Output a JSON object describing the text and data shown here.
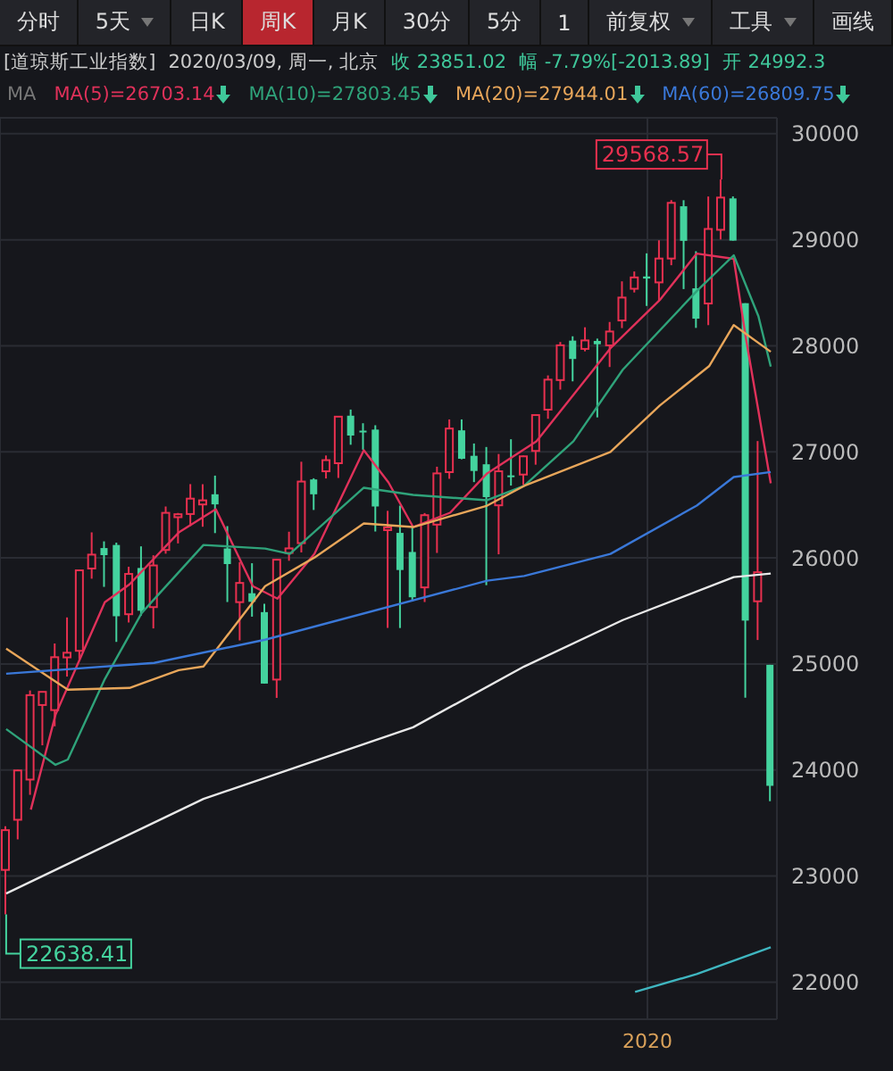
{
  "chart_data": {
    "type": "candlestick",
    "title": "[道琼斯工业指数]",
    "subtitle": "2020/03/09, 周一, 北京",
    "legend_title": "MA",
    "annotations": [
      "分时",
      "5天",
      "日K",
      "周K",
      "月K",
      "30分",
      "5分",
      "1",
      "前复权",
      "工具",
      "画线",
      "收 23851.02",
      "幅 -7.79%[-2013.89]",
      "开 24992.3",
      "29568.57",
      "22638.41"
    ],
    "categories": [
      null,
      null,
      null,
      null,
      null,
      null,
      null,
      null,
      null,
      null,
      null,
      null,
      null,
      null,
      null,
      null,
      null,
      null,
      null,
      null,
      null,
      null,
      null,
      null,
      null,
      null,
      null,
      null,
      null,
      null,
      null,
      null,
      null,
      null,
      null,
      null,
      null,
      null,
      null,
      null,
      null,
      null,
      null,
      null,
      null,
      null,
      null,
      null,
      null,
      null,
      null,
      null,
      "2020",
      null,
      null,
      null,
      null,
      null,
      null,
      null,
      null,
      null,
      null
    ],
    "ohlc": [
      [
        23058,
        23470,
        22638.41,
        23433
      ],
      [
        23531,
        24002,
        23346,
        23996
      ],
      [
        23910,
        24750,
        23766,
        24706
      ],
      [
        24613,
        24737,
        24233,
        24737
      ],
      [
        24565,
        25193,
        24412,
        25064
      ],
      [
        25062,
        25439,
        24881,
        25106
      ],
      [
        25124,
        25883,
        25044,
        25883
      ],
      [
        25900,
        26241,
        25804,
        26031
      ],
      [
        26093,
        26156,
        25727,
        26026
      ],
      [
        26122,
        26144,
        25208,
        25450
      ],
      [
        25469,
        25917,
        25391,
        25849
      ],
      [
        25905,
        26109,
        25455,
        25502
      ],
      [
        25536,
        26025,
        25335,
        25929
      ],
      [
        26075,
        26485,
        26040,
        26425
      ],
      [
        26384,
        26424,
        26137,
        26412
      ],
      [
        26414,
        26696,
        26300,
        26559
      ],
      [
        26504,
        26695,
        26294,
        26543
      ],
      [
        26600,
        26776,
        26234,
        26505
      ],
      [
        26089,
        26300,
        25584,
        25942
      ],
      [
        25583,
        25960,
        25222,
        25764
      ],
      [
        25667,
        25950,
        25446,
        25586
      ],
      [
        25489,
        25568,
        24815,
        24815
      ],
      [
        24853,
        25986,
        24680,
        25983
      ],
      [
        26047,
        26247,
        25973,
        26090
      ],
      [
        26139,
        26907,
        26052,
        26720
      ],
      [
        26740,
        26751,
        26452,
        26600
      ],
      [
        26817,
        26966,
        26749,
        26922
      ],
      [
        26893,
        27333,
        26754,
        27332
      ],
      [
        27341,
        27399,
        27067,
        27154
      ],
      [
        27200,
        27270,
        27020,
        27192
      ],
      [
        27210,
        27251,
        26249,
        26485
      ],
      [
        26262,
        26444,
        25340,
        26287
      ],
      [
        26236,
        26493,
        25339,
        25886
      ],
      [
        26056,
        26298,
        25589,
        25629
      ],
      [
        25722,
        26423,
        25584,
        26403
      ],
      [
        26314,
        26860,
        26047,
        26797
      ],
      [
        26809,
        27306,
        26746,
        27220
      ],
      [
        27203,
        27306,
        26930,
        26935
      ],
      [
        26963,
        27079,
        26715,
        26820
      ],
      [
        26883,
        27046,
        25743,
        26573
      ],
      [
        26496,
        26980,
        26034,
        26817
      ],
      [
        26778,
        27119,
        26682,
        26770
      ],
      [
        26786,
        26964,
        26687,
        26958
      ],
      [
        27009,
        27347,
        26879,
        27347
      ],
      [
        27398,
        27721,
        27312,
        27681
      ],
      [
        27677,
        28036,
        27587,
        28005
      ],
      [
        28049,
        28090,
        27665,
        27876
      ],
      [
        27971,
        28175,
        27948,
        28051
      ],
      [
        28046,
        28068,
        27325,
        28015
      ],
      [
        28004,
        28225,
        27800,
        28135
      ],
      [
        28239,
        28608,
        28167,
        28455
      ],
      [
        28538,
        28701,
        28503,
        28645
      ],
      [
        28654,
        28872,
        28376,
        28634
      ],
      [
        28598,
        28995,
        28418,
        28823
      ],
      [
        28823,
        29374,
        28760,
        29348
      ],
      [
        29316,
        29373,
        28535,
        28990
      ],
      [
        28542,
        28892,
        28169,
        28256
      ],
      [
        28399,
        29408,
        28195,
        29102
      ],
      [
        29094,
        29568.57,
        29003,
        29398
      ],
      [
        29390,
        29409,
        28992,
        28992
      ],
      [
        28402,
        28402,
        24681,
        25409
      ],
      [
        25591,
        27102,
        25226,
        25865
      ],
      [
        24992,
        24992,
        23706,
        23851.02
      ]
    ],
    "colors": [
      "#e8304f",
      "#e8304f",
      "#e8304f",
      "#e8304f",
      "#e8304f",
      "#e8304f",
      "#e8304f",
      "#e8304f",
      "#44d39e",
      "#44d39e",
      "#e8304f",
      "#44d39e",
      "#e8304f",
      "#e8304f",
      "#e8304f",
      "#e8304f",
      "#e8304f",
      "#44d39e",
      "#44d39e",
      "#e8304f",
      "#44d39e",
      "#44d39e",
      "#e8304f",
      "#e8304f",
      "#e8304f",
      "#44d39e",
      "#e8304f",
      "#e8304f",
      "#44d39e",
      "#44d39e",
      "#44d39e",
      "#e8304f",
      "#44d39e",
      "#44d39e",
      "#e8304f",
      "#e8304f",
      "#e8304f",
      "#44d39e",
      "#44d39e",
      "#44d39e",
      "#e8304f",
      "#44d39e",
      "#e8304f",
      "#e8304f",
      "#e8304f",
      "#e8304f",
      "#44d39e",
      "#e8304f",
      "#44d39e",
      "#e8304f",
      "#e8304f",
      "#e8304f",
      "#44d39e",
      "#e8304f",
      "#e8304f",
      "#44d39e",
      "#44d39e",
      "#e8304f",
      "#e8304f",
      "#44d39e",
      "#44d39e",
      "#e8304f",
      "#44d39e"
    ],
    "series": [
      {
        "type": "line",
        "name": "MA(5)=26703.14",
        "color": "#e0315a",
        "values": [
          null,
          null,
          23627,
          null,
          24521,
          null,
          null,
          null,
          25583,
          null,
          25751,
          null,
          null,
          null,
          26240,
          null,
          null,
          26459,
          null,
          null,
          25734,
          null,
          25616,
          null,
          null,
          26038,
          null,
          null,
          null,
          27016,
          null,
          26712,
          null,
          26291,
          null,
          null,
          26426,
          null,
          null,
          26797,
          null,
          null,
          null,
          27100,
          null,
          null,
          null,
          null,
          null,
          27977,
          null,
          null,
          null,
          28432,
          null,
          null,
          28870,
          null,
          null,
          28820,
          28061,
          27387,
          26703.14
        ]
      },
      {
        "type": "line",
        "name": "MA(10)=27803.45",
        "color": "#2fa37a",
        "values": [
          24386,
          null,
          null,
          null,
          24049,
          24099,
          null,
          null,
          24858,
          null,
          null,
          25482,
          null,
          null,
          null,
          null,
          26122,
          null,
          null,
          null,
          null,
          26088,
          null,
          26038,
          null,
          null,
          null,
          null,
          null,
          26662,
          null,
          null,
          null,
          26594,
          null,
          null,
          null,
          null,
          null,
          26544,
          null,
          null,
          26679,
          null,
          null,
          null,
          27100,
          null,
          null,
          null,
          27775,
          null,
          null,
          null,
          null,
          null,
          28516,
          null,
          null,
          28854,
          null,
          28280,
          27803.45
        ]
      },
      {
        "type": "line",
        "name": "MA(20)=27944.01",
        "color": "#e8a65a",
        "values": [
          25144,
          null,
          null,
          null,
          null,
          24757,
          null,
          null,
          null,
          null,
          24774,
          null,
          null,
          null,
          24942,
          null,
          24976,
          null,
          null,
          null,
          null,
          25734,
          null,
          null,
          null,
          26004,
          null,
          null,
          null,
          26325,
          null,
          null,
          null,
          26291,
          null,
          null,
          null,
          null,
          null,
          26493,
          null,
          null,
          26679,
          null,
          null,
          null,
          null,
          null,
          null,
          26999,
          null,
          null,
          null,
          27437,
          null,
          null,
          null,
          27808,
          null,
          28196,
          null,
          null,
          27944.01
        ]
      },
      {
        "type": "line",
        "name": "MA(60)=26809.75",
        "color": "#3a78d8",
        "values": [
          24908,
          null,
          null,
          null,
          null,
          null,
          null,
          null,
          null,
          null,
          null,
          null,
          25010,
          null,
          null,
          null,
          null,
          null,
          null,
          null,
          null,
          25229,
          null,
          null,
          null,
          null,
          null,
          null,
          null,
          null,
          null,
          null,
          null,
          null,
          null,
          null,
          null,
          null,
          null,
          25785,
          null,
          null,
          25830,
          null,
          null,
          null,
          null,
          null,
          null,
          26038,
          null,
          null,
          null,
          null,
          null,
          null,
          26493,
          null,
          null,
          26763,
          null,
          null,
          26809.75
        ]
      },
      {
        "type": "line",
        "color": "#e8e8e8",
        "values": [
          22835,
          null,
          null,
          null,
          null,
          null,
          null,
          null,
          null,
          null,
          null,
          null,
          null,
          null,
          null,
          null,
          23728,
          null,
          null,
          null,
          null,
          null,
          null,
          null,
          null,
          null,
          null,
          null,
          null,
          null,
          null,
          null,
          null,
          24403,
          null,
          null,
          null,
          null,
          null,
          null,
          null,
          null,
          24976,
          null,
          null,
          null,
          null,
          null,
          null,
          null,
          25414,
          null,
          null,
          null,
          null,
          null,
          null,
          null,
          null,
          25819,
          null,
          null,
          25853
        ]
      },
      {
        "type": "line",
        "color": "#3fb6c0",
        "values": [
          null,
          null,
          null,
          null,
          null,
          null,
          null,
          null,
          null,
          null,
          null,
          null,
          null,
          null,
          null,
          null,
          null,
          null,
          null,
          null,
          null,
          null,
          null,
          null,
          null,
          null,
          null,
          null,
          null,
          null,
          null,
          null,
          null,
          null,
          null,
          null,
          null,
          null,
          null,
          null,
          null,
          null,
          null,
          null,
          null,
          null,
          null,
          null,
          null,
          null,
          null,
          21907,
          null,
          null,
          null,
          null,
          22076,
          null,
          null,
          null,
          null,
          null,
          22329
        ]
      }
    ],
    "ylim": [
      21650,
      30150
    ],
    "yticks": [
      22000,
      23000,
      24000,
      25000,
      26000,
      27000,
      28000,
      29000,
      30000
    ],
    "grid": true,
    "legend": "top",
    "marker": "none",
    "line_style": "solid"
  }
}
